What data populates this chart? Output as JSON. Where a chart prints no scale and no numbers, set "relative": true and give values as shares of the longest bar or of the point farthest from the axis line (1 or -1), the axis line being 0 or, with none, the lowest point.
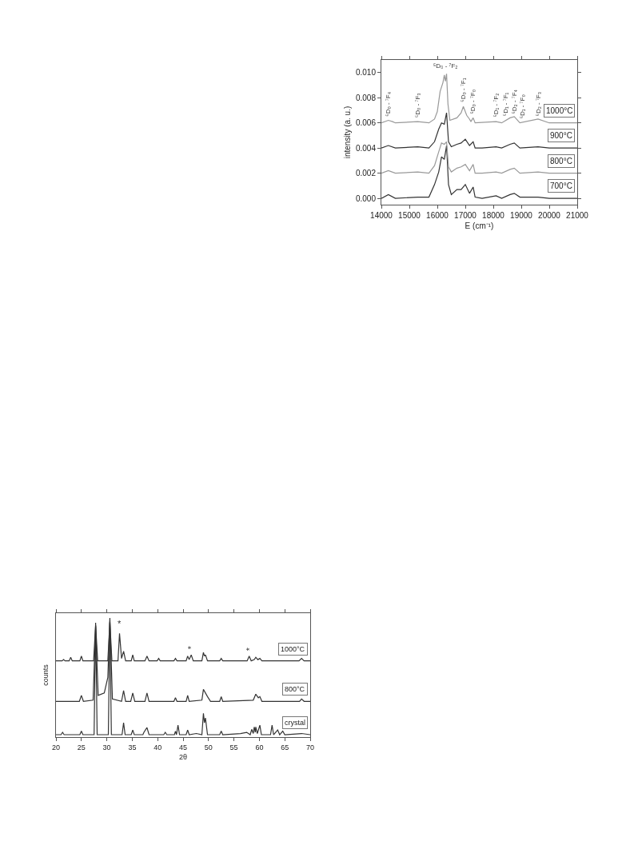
{
  "chart_data": [
    {
      "type": "line",
      "xlabel": "E (cm⁻¹)",
      "ylabel": "intensity (a. u.)",
      "xlim": [
        14000,
        21000
      ],
      "xticks": [
        14000,
        15000,
        16000,
        17000,
        18000,
        19000,
        20000,
        21000
      ],
      "ylim": [
        -0.0005,
        0.011
      ],
      "yticks": [
        {
          "value": 0,
          "label": "0.000"
        },
        {
          "value": 0.002,
          "label": "0.002"
        },
        {
          "value": 0.004,
          "label": "0.004"
        },
        {
          "value": 0.006,
          "label": "0.006"
        },
        {
          "value": 0.008,
          "label": "0.008"
        },
        {
          "value": 0.01,
          "label": "0.010"
        }
      ],
      "grid": false,
      "legend": false,
      "marker": "none",
      "x": [
        14000,
        14250,
        14500,
        15300,
        15700,
        15900,
        16050,
        16150,
        16250,
        16330,
        16400,
        16500,
        16700,
        16850,
        17000,
        17150,
        17280,
        17350,
        17600,
        18100,
        18300,
        18600,
        18750,
        18950,
        19600,
        20000,
        21000
      ],
      "series": [
        {
          "name": "700°C",
          "color": "#333333",
          "values": [
            0,
            0.0003,
            0,
            0.0001,
            0.0001,
            0.0011,
            0.0021,
            0.0033,
            0.0031,
            0.0042,
            0.0011,
            0.0003,
            0.0007,
            0.0007,
            0.0011,
            0.0004,
            0.0009,
            0.0001,
            0,
            0.0002,
            0,
            0.0003,
            0.0004,
            0.0001,
            0.0001,
            0,
            0
          ]
        },
        {
          "name": "800°C",
          "color": "#999999",
          "values": [
            0.002,
            0.0022,
            0.002,
            0.0021,
            0.002,
            0.0026,
            0.0037,
            0.0044,
            0.0043,
            0.0045,
            0.0025,
            0.0021,
            0.0024,
            0.0025,
            0.0027,
            0.0022,
            0.0027,
            0.002,
            0.002,
            0.0021,
            0.002,
            0.0023,
            0.0024,
            0.002,
            0.0021,
            0.002,
            0.002
          ]
        },
        {
          "name": "900°C",
          "color": "#333333",
          "values": [
            0.004,
            0.0042,
            0.004,
            0.0041,
            0.004,
            0.0045,
            0.0055,
            0.006,
            0.0059,
            0.0068,
            0.0045,
            0.0041,
            0.0043,
            0.0044,
            0.0047,
            0.0042,
            0.0045,
            0.004,
            0.004,
            0.0041,
            0.004,
            0.0043,
            0.0044,
            0.004,
            0.0041,
            0.004,
            0.004
          ]
        },
        {
          "name": "1000°C",
          "color": "#999999",
          "x": [
            14000,
            14250,
            14400,
            14500,
            15300,
            15700,
            15900,
            16000,
            16100,
            16200,
            16250,
            16290,
            16330,
            16380,
            16450,
            16700,
            16850,
            16930,
            17050,
            17150,
            17200,
            17280,
            17350,
            18100,
            18300,
            18600,
            18750,
            18950,
            19600,
            20000,
            21000
          ],
          "values": [
            0.006,
            0.0062,
            0.0061,
            0.006,
            0.0061,
            0.006,
            0.0063,
            0.0069,
            0.0085,
            0.0092,
            0.0098,
            0.0093,
            0.0099,
            0.0075,
            0.0062,
            0.0064,
            0.0068,
            0.0073,
            0.0066,
            0.0063,
            0.0061,
            0.0064,
            0.006,
            0.0061,
            0.006,
            0.0064,
            0.0065,
            0.006,
            0.0063,
            0.006,
            0.006
          ]
        }
      ],
      "annotations": [
        {
          "text": "⁵D₀ - ⁷F₄",
          "x": 14250,
          "y": 0.0064
        },
        {
          "text": "⁵D₀ - ⁷F₃",
          "x": 15300,
          "y": 0.0063
        },
        {
          "text": "⁵D₀ - ⁷F₂",
          "x": 16290,
          "y": 0.0101
        },
        {
          "text": "⁵D₀ - ⁷F₁",
          "x": 16930,
          "y": 0.0075
        },
        {
          "text": "⁵D₀ - ⁷F₀",
          "x": 17280,
          "y": 0.0066
        },
        {
          "text": "⁵D₁ - ⁷F₂",
          "x": 18100,
          "y": 0.0063
        },
        {
          "text": "⁵D₁ - ⁷F₁",
          "x": 18450,
          "y": 0.0064
        },
        {
          "text": "⁵D₂ - ⁷F₄",
          "x": 18750,
          "y": 0.0066
        },
        {
          "text": "⁵D₁ - ⁷F₀",
          "x": 19050,
          "y": 0.0062
        },
        {
          "text": "⁵D₂ - ⁷F₃",
          "x": 19600,
          "y": 0.0064
        }
      ]
    },
    {
      "type": "line",
      "xlabel": "2θ",
      "ylabel": "counts",
      "relative": true,
      "tick_labels": "x",
      "xlim": [
        20,
        70
      ],
      "xticks": [
        20,
        25,
        30,
        35,
        40,
        45,
        50,
        55,
        60,
        65,
        70
      ],
      "grid": false,
      "legend": false,
      "marker": "none",
      "series": [
        {
          "name": "1000°C",
          "color": "#333333",
          "x": [
            20,
            21.2,
            21.5,
            21.8,
            22.6,
            22.9,
            23.2,
            24.7,
            25,
            25.3,
            27.4,
            27.8,
            28.2,
            30.2,
            30.6,
            31,
            32.2,
            32.5,
            32.9,
            33.3,
            33.7,
            34.8,
            35.1,
            35.4,
            37.5,
            37.9,
            38.3,
            39.9,
            40.2,
            40.5,
            43.2,
            43.5,
            43.8,
            45.6,
            45.9,
            46.2,
            46.6,
            47,
            48.7,
            49,
            49.2,
            49.4,
            49.8,
            52.2,
            52.5,
            52.8,
            57.6,
            58,
            58.4,
            59,
            59.3,
            59.7,
            60.1,
            60.5,
            67.8,
            68.3,
            68.8,
            70
          ],
          "values": [
            0.64,
            0.64,
            0.65,
            0.64,
            0.64,
            0.67,
            0.64,
            0.64,
            0.68,
            0.64,
            0.64,
            0.94,
            0.64,
            0.64,
            0.97,
            0.64,
            0.64,
            0.87,
            0.66,
            0.72,
            0.64,
            0.64,
            0.69,
            0.64,
            0.64,
            0.68,
            0.64,
            0.64,
            0.66,
            0.64,
            0.64,
            0.66,
            0.64,
            0.64,
            0.68,
            0.65,
            0.69,
            0.64,
            0.64,
            0.71,
            0.68,
            0.69,
            0.64,
            0.64,
            0.66,
            0.64,
            0.64,
            0.68,
            0.64,
            0.65,
            0.67,
            0.65,
            0.66,
            0.64,
            0.64,
            0.66,
            0.64,
            0.64
          ]
        },
        {
          "name": "800°C",
          "color": "#333333",
          "x": [
            20,
            24.6,
            25,
            25.4,
            27.3,
            27.8,
            28.3,
            29.5,
            30.2,
            30.6,
            31.1,
            32.9,
            33.3,
            33.7,
            34.7,
            35.1,
            35.5,
            37.5,
            37.9,
            38.3,
            43.2,
            43.5,
            43.8,
            45.6,
            45.9,
            46.2,
            48.7,
            49,
            49.8,
            50.4,
            52.2,
            52.5,
            52.8,
            58.8,
            59.3,
            59.8,
            60.1,
            60.5,
            67.9,
            68.3,
            68.8,
            70
          ],
          "values": [
            0.3,
            0.3,
            0.35,
            0.3,
            0.31,
            0.93,
            0.35,
            0.37,
            0.5,
            1,
            0.32,
            0.3,
            0.39,
            0.3,
            0.3,
            0.37,
            0.3,
            0.3,
            0.37,
            0.3,
            0.3,
            0.33,
            0.3,
            0.3,
            0.35,
            0.3,
            0.31,
            0.4,
            0.34,
            0.3,
            0.3,
            0.34,
            0.3,
            0.31,
            0.36,
            0.33,
            0.34,
            0.3,
            0.3,
            0.32,
            0.3,
            0.3
          ]
        },
        {
          "name": "crystal",
          "color": "#333333",
          "x": [
            20,
            21,
            21.3,
            21.6,
            24.7,
            25,
            25.3,
            27.5,
            27.8,
            28.1,
            30.3,
            30.6,
            30.9,
            33,
            33.3,
            33.6,
            34.8,
            35.1,
            35.4,
            37.1,
            37.3,
            37.9,
            38.3,
            41.2,
            41.5,
            41.8,
            43.3,
            43.5,
            43.7,
            44,
            44.3,
            45.6,
            45.9,
            46.2,
            47.6,
            48.7,
            49,
            49.2,
            49.4,
            49.8,
            52.2,
            52.5,
            52.8,
            56.3,
            57.5,
            58.2,
            58.5,
            58.8,
            59,
            59.2,
            59.3,
            59.6,
            60.1,
            60.4,
            62.2,
            62.5,
            62.8,
            63.6,
            64,
            64.6,
            65,
            68.3,
            70
          ],
          "values": [
            0.02,
            0.02,
            0.04,
            0.02,
            0.02,
            0.05,
            0.02,
            0.02,
            0.96,
            0.02,
            0.02,
            0.96,
            0.02,
            0.02,
            0.12,
            0.02,
            0.02,
            0.06,
            0.02,
            0.02,
            0.04,
            0.08,
            0.02,
            0.02,
            0.04,
            0.02,
            0.02,
            0.05,
            0.02,
            0.1,
            0.02,
            0.02,
            0.06,
            0.02,
            0.03,
            0.02,
            0.2,
            0.12,
            0.16,
            0.02,
            0.02,
            0.05,
            0.02,
            0.03,
            0.04,
            0.02,
            0.065,
            0.03,
            0.085,
            0.04,
            0.085,
            0.03,
            0.1,
            0.02,
            0.02,
            0.1,
            0.02,
            0.06,
            0.02,
            0.05,
            0.02,
            0.03,
            0.02
          ]
        }
      ],
      "annotations": [
        {
          "text": "*",
          "x": 32.5,
          "y": 0.9
        },
        {
          "text": "*",
          "x": 46.6,
          "y": 0.72
        },
        {
          "text": "*",
          "x": 58,
          "y": 0.71
        }
      ]
    }
  ]
}
